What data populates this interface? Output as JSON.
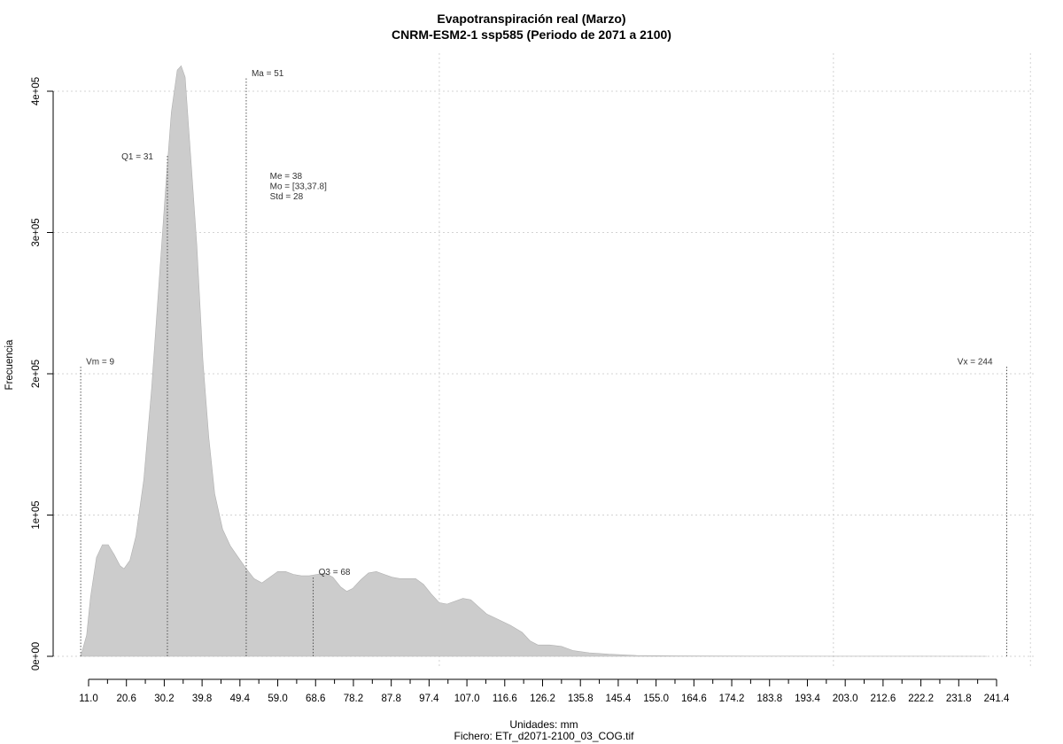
{
  "chart_data": {
    "type": "area",
    "title": "Evapotranspiración real (Marzo)",
    "subtitle": "CNRM-ESM2-1 ssp585 (Periodo de 2071 a 2100)",
    "xlabel": "Unidades: mm",
    "ylabel": "Frecuencia",
    "footer": "Fichero: ETr_d2071-2100_03_COG.tif",
    "xlim": [
      6,
      249
    ],
    "ylim": [
      0,
      420000
    ],
    "x_ticks": [
      "11.0",
      "20.6",
      "30.2",
      "39.8",
      "49.4",
      "59.0",
      "68.6",
      "78.2",
      "87.8",
      "97.4",
      "107.0",
      "116.6",
      "126.2",
      "135.8",
      "145.4",
      "155.0",
      "164.6",
      "174.2",
      "183.8",
      "193.4",
      "203.0",
      "212.6",
      "222.2",
      "231.8",
      "241.4"
    ],
    "y_ticks": [
      {
        "value": 0,
        "label": "0e+00"
      },
      {
        "value": 100000,
        "label": "1e+05"
      },
      {
        "value": 200000,
        "label": "2e+05"
      },
      {
        "value": 300000,
        "label": "3e+05"
      },
      {
        "value": 400000,
        "label": "4e+05"
      }
    ],
    "x_grid": [
      100,
      200,
      250
    ],
    "grid": true,
    "fill_color": "#cccccc",
    "density": [
      [
        9,
        0
      ],
      [
        10.5,
        15000
      ],
      [
        11.5,
        42000
      ],
      [
        13,
        70000
      ],
      [
        14.5,
        79000
      ],
      [
        16,
        79000
      ],
      [
        17.5,
        72000
      ],
      [
        19,
        64000
      ],
      [
        20,
        62000
      ],
      [
        21.5,
        68000
      ],
      [
        23,
        85000
      ],
      [
        25,
        125000
      ],
      [
        27,
        190000
      ],
      [
        29,
        270000
      ],
      [
        30.5,
        330000
      ],
      [
        32,
        385000
      ],
      [
        33.5,
        415000
      ],
      [
        34.5,
        418000
      ],
      [
        35.5,
        410000
      ],
      [
        37,
        350000
      ],
      [
        38.5,
        290000
      ],
      [
        40,
        210000
      ],
      [
        41.5,
        155000
      ],
      [
        43,
        115000
      ],
      [
        45,
        90000
      ],
      [
        47,
        78000
      ],
      [
        49,
        70000
      ],
      [
        51,
        62000
      ],
      [
        53,
        55000
      ],
      [
        55,
        52000
      ],
      [
        57,
        56000
      ],
      [
        59,
        60000
      ],
      [
        61,
        60000
      ],
      [
        63,
        58000
      ],
      [
        65,
        57000
      ],
      [
        67,
        57000
      ],
      [
        69,
        58000
      ],
      [
        71,
        59000
      ],
      [
        73,
        56000
      ],
      [
        75,
        49000
      ],
      [
        76.5,
        46000
      ],
      [
        78,
        48000
      ],
      [
        80,
        54000
      ],
      [
        82,
        59000
      ],
      [
        84,
        60000
      ],
      [
        86,
        58000
      ],
      [
        88,
        56000
      ],
      [
        90,
        55000
      ],
      [
        92,
        55000
      ],
      [
        94,
        55000
      ],
      [
        96,
        51000
      ],
      [
        98,
        44000
      ],
      [
        100,
        38000
      ],
      [
        102,
        37000
      ],
      [
        104,
        39000
      ],
      [
        106,
        41000
      ],
      [
        108,
        40000
      ],
      [
        110,
        35000
      ],
      [
        112,
        30000
      ],
      [
        115,
        26000
      ],
      [
        118,
        22000
      ],
      [
        121,
        17000
      ],
      [
        123,
        11000
      ],
      [
        125,
        8000
      ],
      [
        128,
        8000
      ],
      [
        131,
        7000
      ],
      [
        134,
        4000
      ],
      [
        138,
        2500
      ],
      [
        143,
        1500
      ],
      [
        150,
        600
      ],
      [
        160,
        300
      ],
      [
        180,
        150
      ],
      [
        200,
        80
      ],
      [
        220,
        40
      ],
      [
        239,
        0
      ]
    ],
    "annotations": [
      {
        "label": "Vm = 9",
        "x": 9,
        "line_top": 206000,
        "text_y": 206000,
        "align": "left"
      },
      {
        "label": "Q1 = 31",
        "x": 31,
        "line_top": 355000,
        "text_y": 351000,
        "align": "right"
      },
      {
        "label": "Ma = 51",
        "x": 51,
        "line_top": 410000,
        "text_y": 410000,
        "align": "left"
      },
      {
        "label": "Q3 = 68",
        "x": 68,
        "line_top": 57000,
        "text_y": 57000,
        "align": "left"
      },
      {
        "label": "Vx = 244",
        "x": 244,
        "line_top": 206000,
        "text_y": 206000,
        "align": "right"
      }
    ],
    "stats": {
      "anchor_x": 57,
      "anchor_y": 338000,
      "lines": [
        "Me = 38",
        "Mo = [33,37.8]",
        "Std = 28"
      ]
    }
  }
}
